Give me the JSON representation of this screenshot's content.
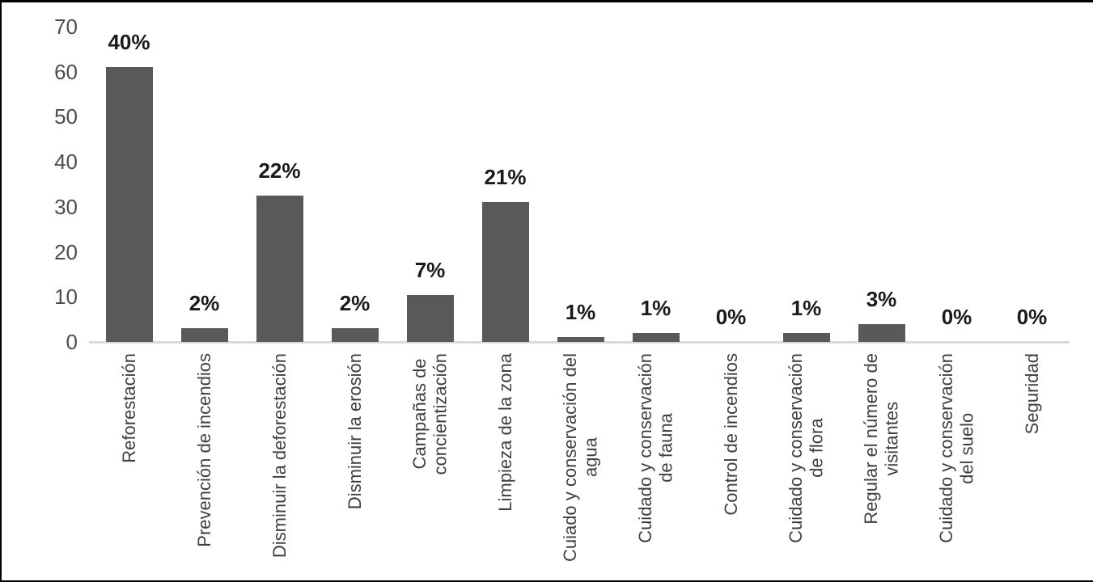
{
  "chart_data": {
    "type": "bar",
    "title": "",
    "xlabel": "",
    "ylabel": "",
    "ylim": [
      0,
      70
    ],
    "y_ticks": [
      0,
      10,
      20,
      30,
      40,
      50,
      60,
      70
    ],
    "grid": false,
    "legend": false,
    "bar_color": "#595959",
    "axis_line_color": "#d9d9d9",
    "data_label_color": "#1a1a1a",
    "tick_label_color": "#4d4d4d",
    "categories": [
      "Reforestación",
      "Prevención de incendios",
      "Disminuir la deforestación",
      "Disminuir la erosión",
      "Campañas de\nconcientización",
      "Limpieza de la zona",
      "Cuiado y conservación del\nagua",
      "Cuidado y conservación\nde fauna",
      "Control de incendios",
      "Cuidado y conservación\nde flora",
      "Regular el número de\nvisitantes",
      "Cuidado y conservación\ndel suelo",
      "Seguridad"
    ],
    "data_labels": [
      "40%",
      "2%",
      "22%",
      "2%",
      "7%",
      "21%",
      "1%",
      "1%",
      "0%",
      "1%",
      "3%",
      "0%",
      "0%"
    ],
    "values_percent": [
      40,
      2,
      22,
      2,
      7,
      21,
      1,
      1,
      0,
      1,
      3,
      0,
      0
    ],
    "bar_heights_axis_units": [
      61,
      3,
      32.5,
      3,
      10.5,
      31,
      1,
      2,
      0,
      2,
      4,
      0,
      0
    ]
  }
}
